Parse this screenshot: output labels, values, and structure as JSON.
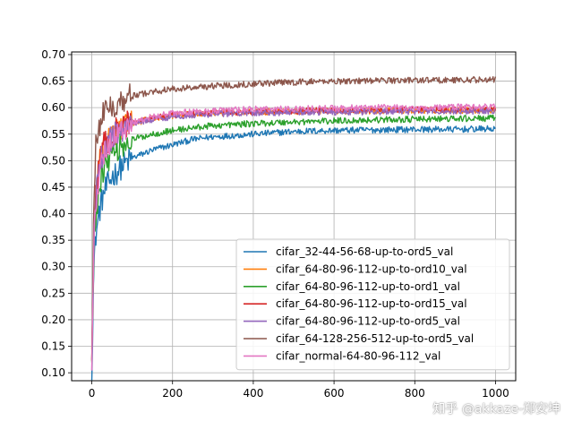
{
  "chart_data": {
    "type": "line",
    "title": "",
    "xlabel": "",
    "ylabel": "",
    "xlim": [
      -50,
      1050
    ],
    "ylim": [
      0.085,
      0.705
    ],
    "xticks": [
      0,
      200,
      400,
      600,
      800,
      1000
    ],
    "yticks": [
      0.1,
      0.15,
      0.2,
      0.25,
      0.3,
      0.35,
      0.4,
      0.45,
      0.5,
      0.55,
      0.6,
      0.65,
      0.7
    ],
    "grid": true,
    "legend_position": "lower-right",
    "series": [
      {
        "name": "cifar_32-44-56-68-up-to-ord5_val",
        "color": "#1f77b4",
        "x": [
          0,
          5,
          10,
          20,
          30,
          50,
          75,
          100,
          150,
          200,
          250,
          300,
          400,
          500,
          600,
          700,
          800,
          900,
          1000
        ],
        "y": [
          0.11,
          0.3,
          0.36,
          0.41,
          0.44,
          0.47,
          0.49,
          0.505,
          0.52,
          0.53,
          0.54,
          0.545,
          0.55,
          0.555,
          0.557,
          0.558,
          0.559,
          0.559,
          0.56
        ]
      },
      {
        "name": "cifar_64-80-96-112-up-to-ord10_val",
        "color": "#ff7f0e",
        "x": [
          0,
          5,
          10,
          20,
          30,
          50,
          75,
          100,
          150,
          200,
          250,
          300,
          400,
          500,
          600,
          700,
          800,
          900,
          1000
        ],
        "y": [
          0.12,
          0.36,
          0.44,
          0.5,
          0.53,
          0.55,
          0.565,
          0.57,
          0.58,
          0.585,
          0.588,
          0.59,
          0.592,
          0.593,
          0.594,
          0.594,
          0.595,
          0.595,
          0.595
        ]
      },
      {
        "name": "cifar_64-80-96-112-up-to-ord1_val",
        "color": "#2ca02c",
        "x": [
          0,
          5,
          10,
          20,
          30,
          50,
          75,
          100,
          150,
          200,
          250,
          300,
          400,
          500,
          600,
          700,
          800,
          900,
          1000
        ],
        "y": [
          0.12,
          0.33,
          0.4,
          0.46,
          0.49,
          0.515,
          0.53,
          0.54,
          0.55,
          0.557,
          0.562,
          0.566,
          0.57,
          0.573,
          0.575,
          0.577,
          0.578,
          0.579,
          0.58
        ]
      },
      {
        "name": "cifar_64-80-96-112-up-to-ord15_val",
        "color": "#d62728",
        "x": [
          0,
          5,
          10,
          20,
          30,
          50,
          75,
          100,
          150,
          200,
          250,
          300,
          400,
          500,
          600,
          700,
          800,
          900,
          1000
        ],
        "y": [
          0.12,
          0.36,
          0.44,
          0.5,
          0.53,
          0.55,
          0.565,
          0.572,
          0.58,
          0.585,
          0.588,
          0.59,
          0.592,
          0.594,
          0.595,
          0.595,
          0.596,
          0.596,
          0.597
        ]
      },
      {
        "name": "cifar_64-80-96-112-up-to-ord5_val",
        "color": "#9467bd",
        "x": [
          0,
          5,
          10,
          20,
          30,
          50,
          75,
          100,
          150,
          200,
          250,
          300,
          400,
          500,
          600,
          700,
          800,
          900,
          1000
        ],
        "y": [
          0.12,
          0.35,
          0.43,
          0.49,
          0.52,
          0.545,
          0.56,
          0.57,
          0.578,
          0.583,
          0.586,
          0.588,
          0.59,
          0.591,
          0.592,
          0.592,
          0.593,
          0.593,
          0.594
        ]
      },
      {
        "name": "cifar_64-128-256-512-up-to-ord5_val",
        "color": "#8c564b",
        "x": [
          0,
          5,
          10,
          20,
          30,
          50,
          75,
          100,
          150,
          200,
          250,
          300,
          400,
          500,
          600,
          700,
          800,
          900,
          1000
        ],
        "y": [
          0.13,
          0.44,
          0.53,
          0.57,
          0.59,
          0.605,
          0.615,
          0.622,
          0.63,
          0.635,
          0.638,
          0.641,
          0.645,
          0.648,
          0.65,
          0.651,
          0.652,
          0.652,
          0.653
        ]
      },
      {
        "name": "cifar_normal-64-80-96-112_val",
        "color": "#e377c2",
        "x": [
          0,
          5,
          10,
          20,
          30,
          50,
          75,
          100,
          150,
          200,
          250,
          300,
          400,
          500,
          600,
          700,
          800,
          900,
          1000
        ],
        "y": [
          0.12,
          0.34,
          0.42,
          0.48,
          0.515,
          0.54,
          0.56,
          0.572,
          0.583,
          0.589,
          0.592,
          0.594,
          0.597,
          0.598,
          0.599,
          0.6,
          0.6,
          0.601,
          0.602
        ]
      }
    ]
  },
  "watermark": "知乎 @akkaze-郑安坤"
}
